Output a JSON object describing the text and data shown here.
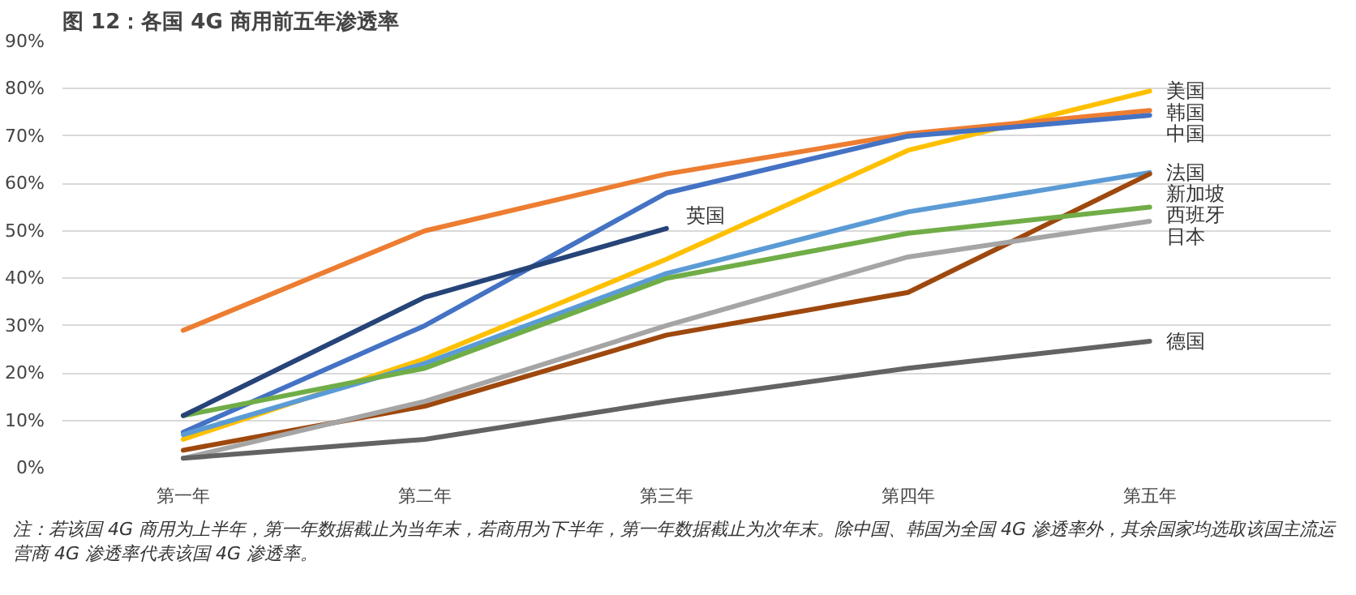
{
  "chart_data": {
    "type": "line",
    "title": "图 12：各国 4G 商用前五年渗透率",
    "categories": [
      "第一年",
      "第二年",
      "第三年",
      "第四年",
      "第五年"
    ],
    "series": [
      {
        "name": "美国",
        "color": "#ffc000",
        "values": [
          6,
          23,
          44,
          67,
          79.5
        ]
      },
      {
        "name": "韩国",
        "color": "#ed7d31",
        "values": [
          29,
          50,
          62,
          70.5,
          75.4
        ]
      },
      {
        "name": "中国",
        "color": "#4472c4",
        "values": [
          7.5,
          30,
          58,
          70,
          74.4
        ]
      },
      {
        "name": "法国",
        "color": "#5b9bd5",
        "values": [
          7,
          22,
          41,
          54,
          62.3
        ]
      },
      {
        "name": "新加坡",
        "color": "#9e480e",
        "values": [
          3.7,
          13,
          28,
          37,
          62
        ]
      },
      {
        "name": "西班牙",
        "color": "#70ad47",
        "values": [
          11,
          21,
          40,
          49.5,
          55
        ]
      },
      {
        "name": "日本",
        "color": "#a5a5a5",
        "values": [
          2,
          14,
          30,
          44.5,
          52
        ]
      },
      {
        "name": "德国",
        "color": "#636363",
        "values": [
          2,
          6,
          14,
          21,
          26.7
        ]
      },
      {
        "name": "英国",
        "color": "#264478",
        "values": [
          11,
          36,
          50.5,
          null,
          null
        ]
      }
    ],
    "ylim": [
      0,
      90
    ],
    "yticks": [
      {
        "value": 0,
        "label": "0%"
      },
      {
        "value": 10,
        "label": "10%"
      },
      {
        "value": 20,
        "label": "20%"
      },
      {
        "value": 30,
        "label": "30%"
      },
      {
        "value": 40,
        "label": "40%"
      },
      {
        "value": 50,
        "label": "50%"
      },
      {
        "value": 60,
        "label": "60%"
      },
      {
        "value": 70,
        "label": "70%"
      },
      {
        "value": 80,
        "label": "80%"
      },
      {
        "value": 90,
        "label": "90%"
      }
    ],
    "grid": "y",
    "marker": "none",
    "line_style": "solid",
    "annotations": [
      "注：若该国 4G 商用为上半年，第一年数据截止为当年末，若商用为下半年，第一年数据截止为次年末。除中国、韩国为全国 4G 渗透率外，其余国家均选取该国主流运营商 4G 渗透率代表该国 4G 渗透率。"
    ]
  }
}
